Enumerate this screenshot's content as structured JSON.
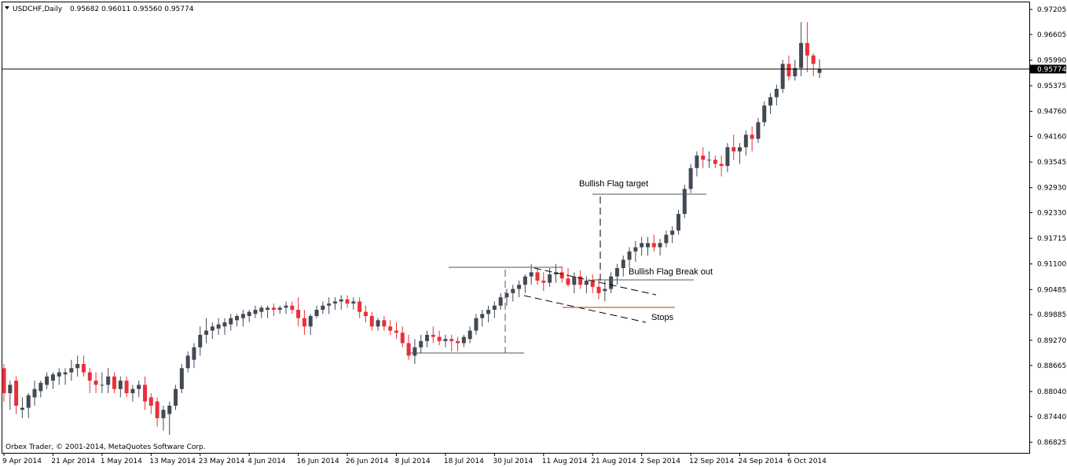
{
  "header": {
    "symbol_label": "USDCHF,Daily",
    "ohlc_text": "0.95682 0.96011 0.95560 0.95774"
  },
  "copyright": "Orbex Trader, © 2001-2014, MetaQuotes Software Corp.",
  "current_price_label": "0.95774",
  "colors": {
    "bull": "#434a54",
    "bear": "#e8303a",
    "grid_border": "#000000",
    "flag_line": "#4a5a5a",
    "stop_line": "#e02020"
  },
  "chart_data": {
    "type": "candlestick",
    "symbol": "USDCHF",
    "timeframe": "Daily",
    "ylim": [
      0.86625,
      0.97205
    ],
    "y_ticks": [
      "0.97205",
      "0.96605",
      "0.95990",
      "0.95375",
      "0.94760",
      "0.94160",
      "0.93545",
      "0.92930",
      "0.92330",
      "0.91715",
      "0.91100",
      "0.90485",
      "0.89885",
      "0.89270",
      "0.88665",
      "0.88040",
      "0.87440",
      "0.86825"
    ],
    "x_ticks": [
      "9 Apr 2014",
      "21 Apr 2014",
      "1 May 2014",
      "13 May 2014",
      "23 May 2014",
      "4 Jun 2014",
      "16 Jun 2014",
      "26 Jun 2014",
      "8 Jul 2014",
      "18 Jul 2014",
      "30 Jul 2014",
      "11 Aug 2014",
      "21 Aug 2014",
      "2 Sep 2014",
      "12 Sep 2014",
      "24 Sep 2014",
      "6 Oct 2014"
    ],
    "current_price": 0.95774,
    "candles_ohlc": [
      [
        0.886,
        0.887,
        0.878,
        0.88
      ],
      [
        0.88,
        0.883,
        0.876,
        0.882
      ],
      [
        0.883,
        0.884,
        0.875,
        0.877
      ],
      [
        0.876,
        0.879,
        0.874,
        0.8765
      ],
      [
        0.8765,
        0.88,
        0.874,
        0.8795
      ],
      [
        0.879,
        0.883,
        0.877,
        0.881
      ],
      [
        0.8805,
        0.883,
        0.879,
        0.8825
      ],
      [
        0.882,
        0.885,
        0.881,
        0.884
      ],
      [
        0.883,
        0.885,
        0.881,
        0.8845
      ],
      [
        0.884,
        0.886,
        0.882,
        0.885
      ],
      [
        0.8845,
        0.886,
        0.882,
        0.885
      ],
      [
        0.885,
        0.888,
        0.883,
        0.886
      ],
      [
        0.886,
        0.889,
        0.884,
        0.887
      ],
      [
        0.887,
        0.889,
        0.884,
        0.885
      ],
      [
        0.885,
        0.886,
        0.88,
        0.883
      ],
      [
        0.883,
        0.885,
        0.88,
        0.882
      ],
      [
        0.882,
        0.885,
        0.88,
        0.882
      ],
      [
        0.882,
        0.886,
        0.88,
        0.884
      ],
      [
        0.884,
        0.885,
        0.88,
        0.881
      ],
      [
        0.881,
        0.884,
        0.879,
        0.883
      ],
      [
        0.883,
        0.884,
        0.879,
        0.88
      ],
      [
        0.88,
        0.882,
        0.878,
        0.881
      ],
      [
        0.881,
        0.883,
        0.879,
        0.882
      ],
      [
        0.882,
        0.884,
        0.876,
        0.878
      ],
      [
        0.879,
        0.88,
        0.875,
        0.877
      ],
      [
        0.878,
        0.879,
        0.872,
        0.874
      ],
      [
        0.874,
        0.877,
        0.871,
        0.876
      ],
      [
        0.875,
        0.878,
        0.87,
        0.877
      ],
      [
        0.877,
        0.882,
        0.876,
        0.881
      ],
      [
        0.881,
        0.887,
        0.88,
        0.886
      ],
      [
        0.886,
        0.89,
        0.885,
        0.889
      ],
      [
        0.888,
        0.892,
        0.886,
        0.891
      ],
      [
        0.891,
        0.896,
        0.889,
        0.894
      ],
      [
        0.894,
        0.898,
        0.892,
        0.895
      ],
      [
        0.895,
        0.897,
        0.893,
        0.896
      ],
      [
        0.8955,
        0.898,
        0.894,
        0.8965
      ],
      [
        0.896,
        0.898,
        0.894,
        0.897
      ],
      [
        0.8965,
        0.899,
        0.895,
        0.898
      ],
      [
        0.8975,
        0.899,
        0.896,
        0.8985
      ],
      [
        0.898,
        0.9,
        0.896,
        0.899
      ],
      [
        0.8985,
        0.9,
        0.897,
        0.8995
      ],
      [
        0.899,
        0.901,
        0.898,
        0.9
      ],
      [
        0.8995,
        0.901,
        0.898,
        0.9005
      ],
      [
        0.9,
        0.901,
        0.898,
        0.9005
      ],
      [
        0.9005,
        0.9015,
        0.8985,
        0.9
      ],
      [
        0.9,
        0.901,
        0.899,
        0.9005
      ],
      [
        0.9005,
        0.902,
        0.899,
        0.901
      ],
      [
        0.901,
        0.902,
        0.899,
        0.9
      ],
      [
        0.9,
        0.903,
        0.896,
        0.898
      ],
      [
        0.898,
        0.9,
        0.894,
        0.896
      ],
      [
        0.896,
        0.899,
        0.894,
        0.8985
      ],
      [
        0.8985,
        0.901,
        0.898,
        0.9
      ],
      [
        0.9,
        0.902,
        0.899,
        0.901
      ],
      [
        0.901,
        0.903,
        0.899,
        0.9015
      ],
      [
        0.9015,
        0.903,
        0.9,
        0.902
      ],
      [
        0.902,
        0.9035,
        0.9,
        0.9025
      ],
      [
        0.9025,
        0.9035,
        0.9005,
        0.9015
      ],
      [
        0.9015,
        0.903,
        0.9,
        0.902
      ],
      [
        0.902,
        0.903,
        0.898,
        0.8995
      ],
      [
        0.8995,
        0.901,
        0.897,
        0.8985
      ],
      [
        0.8985,
        0.8995,
        0.895,
        0.896
      ],
      [
        0.896,
        0.898,
        0.895,
        0.8975
      ],
      [
        0.8975,
        0.8985,
        0.895,
        0.896
      ],
      [
        0.896,
        0.8975,
        0.894,
        0.895
      ],
      [
        0.895,
        0.897,
        0.893,
        0.8945
      ],
      [
        0.8945,
        0.896,
        0.891,
        0.892
      ],
      [
        0.892,
        0.894,
        0.888,
        0.889
      ],
      [
        0.889,
        0.893,
        0.887,
        0.891
      ],
      [
        0.891,
        0.894,
        0.8895,
        0.8925
      ],
      [
        0.8925,
        0.895,
        0.891,
        0.894
      ],
      [
        0.894,
        0.896,
        0.892,
        0.8935
      ],
      [
        0.8935,
        0.895,
        0.8915,
        0.8925
      ],
      [
        0.8925,
        0.894,
        0.891,
        0.893
      ],
      [
        0.893,
        0.894,
        0.89,
        0.8925
      ],
      [
        0.8925,
        0.8935,
        0.89,
        0.892
      ],
      [
        0.892,
        0.894,
        0.891,
        0.8935
      ],
      [
        0.893,
        0.896,
        0.892,
        0.895
      ],
      [
        0.895,
        0.899,
        0.894,
        0.898
      ],
      [
        0.898,
        0.9,
        0.896,
        0.899
      ],
      [
        0.899,
        0.901,
        0.897,
        0.9
      ],
      [
        0.9,
        0.902,
        0.898,
        0.901
      ],
      [
        0.901,
        0.904,
        0.9,
        0.903
      ],
      [
        0.903,
        0.905,
        0.901,
        0.904
      ],
      [
        0.904,
        0.906,
        0.902,
        0.905
      ],
      [
        0.905,
        0.907,
        0.903,
        0.906
      ],
      [
        0.906,
        0.9085,
        0.904,
        0.908
      ],
      [
        0.908,
        0.911,
        0.906,
        0.909
      ],
      [
        0.909,
        0.91,
        0.906,
        0.907
      ],
      [
        0.907,
        0.909,
        0.9045,
        0.9065
      ],
      [
        0.9065,
        0.91,
        0.9055,
        0.9085
      ],
      [
        0.9085,
        0.911,
        0.9065,
        0.909
      ],
      [
        0.909,
        0.9105,
        0.9065,
        0.9075
      ],
      [
        0.9075,
        0.91,
        0.9055,
        0.906
      ],
      [
        0.906,
        0.909,
        0.904,
        0.908
      ],
      [
        0.908,
        0.9095,
        0.905,
        0.906
      ],
      [
        0.906,
        0.908,
        0.904,
        0.907
      ],
      [
        0.907,
        0.9085,
        0.904,
        0.9055
      ],
      [
        0.9055,
        0.9075,
        0.9025,
        0.904
      ],
      [
        0.9045,
        0.907,
        0.902,
        0.905
      ],
      [
        0.905,
        0.909,
        0.904,
        0.908
      ],
      [
        0.908,
        0.911,
        0.906,
        0.91
      ],
      [
        0.91,
        0.913,
        0.908,
        0.912
      ],
      [
        0.912,
        0.915,
        0.91,
        0.914
      ],
      [
        0.914,
        0.9165,
        0.9115,
        0.915
      ],
      [
        0.915,
        0.9175,
        0.913,
        0.916
      ],
      [
        0.915,
        0.9175,
        0.913,
        0.916
      ],
      [
        0.916,
        0.918,
        0.914,
        0.915
      ],
      [
        0.915,
        0.917,
        0.913,
        0.916
      ],
      [
        0.916,
        0.919,
        0.915,
        0.918
      ],
      [
        0.918,
        0.92,
        0.916,
        0.919
      ],
      [
        0.919,
        0.924,
        0.918,
        0.923
      ],
      [
        0.923,
        0.93,
        0.922,
        0.929
      ],
      [
        0.929,
        0.935,
        0.928,
        0.934
      ],
      [
        0.934,
        0.938,
        0.932,
        0.937
      ],
      [
        0.937,
        0.939,
        0.934,
        0.936
      ],
      [
        0.936,
        0.938,
        0.934,
        0.936
      ],
      [
        0.936,
        0.937,
        0.934,
        0.935
      ],
      [
        0.935,
        0.937,
        0.932,
        0.9345
      ],
      [
        0.9345,
        0.94,
        0.933,
        0.939
      ],
      [
        0.939,
        0.942,
        0.936,
        0.938
      ],
      [
        0.938,
        0.94,
        0.935,
        0.939
      ],
      [
        0.939,
        0.943,
        0.937,
        0.942
      ],
      [
        0.942,
        0.944,
        0.938,
        0.941
      ],
      [
        0.941,
        0.946,
        0.94,
        0.945
      ],
      [
        0.945,
        0.95,
        0.944,
        0.949
      ],
      [
        0.949,
        0.952,
        0.947,
        0.951
      ],
      [
        0.951,
        0.954,
        0.949,
        0.953
      ],
      [
        0.953,
        0.96,
        0.952,
        0.959
      ],
      [
        0.959,
        0.961,
        0.955,
        0.956
      ],
      [
        0.956,
        0.96,
        0.955,
        0.958
      ],
      [
        0.958,
        0.969,
        0.956,
        0.964
      ],
      [
        0.964,
        0.969,
        0.957,
        0.961
      ],
      [
        0.961,
        0.9615,
        0.956,
        0.959
      ],
      [
        0.95682,
        0.96011,
        0.9556,
        0.95774
      ]
    ],
    "annotations": {
      "flag_target_label": "Bullish Flag target",
      "breakout_label": "Bullish Flag Break out",
      "stops_label": "Stops"
    }
  }
}
